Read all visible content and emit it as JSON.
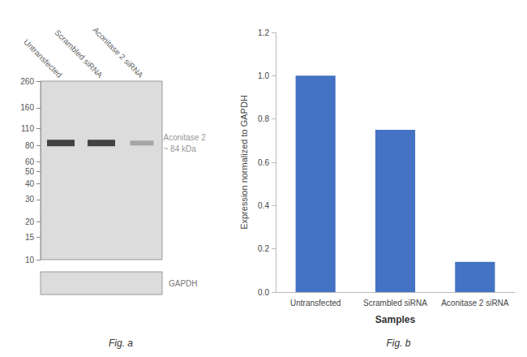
{
  "chart_data": [
    {
      "type": "blot",
      "title": "Fig. a",
      "categories": [
        "Untransfected",
        "Scrambled siRNA",
        "Aconitase 2 siRNA"
      ],
      "ylim": [
        10,
        260
      ],
      "yticks": [
        260,
        160,
        110,
        80,
        60,
        50,
        40,
        30,
        20,
        15,
        10
      ],
      "log": "y",
      "grid": false,
      "series": [
        {
          "name": "Aconitase 2",
          "values": [
            84,
            84,
            84
          ],
          "colors": [
            "#1c1c1c",
            "#1c1c1c",
            "#999999"
          ]
        }
      ],
      "annotations": [
        "~ 84 kDa",
        "GAPDH"
      ]
    },
    {
      "type": "bar",
      "title": "Fig. b",
      "categories": [
        "Untransfected",
        "Scrambled siRNA",
        "Aconitase 2 siRNA"
      ],
      "values": [
        1.0,
        0.75,
        0.14
      ],
      "color": "#4472C4",
      "xlabel": "Samples",
      "ylabel": "Expression normalized to GAPDH",
      "ylim": [
        0,
        1.2
      ],
      "yticks": [
        {
          "value": 0,
          "label": "0.0"
        },
        0.2,
        0.4,
        0.6,
        0.8,
        {
          "value": 1.0,
          "label": "1.0"
        },
        1.2
      ],
      "grid": false
    }
  ]
}
